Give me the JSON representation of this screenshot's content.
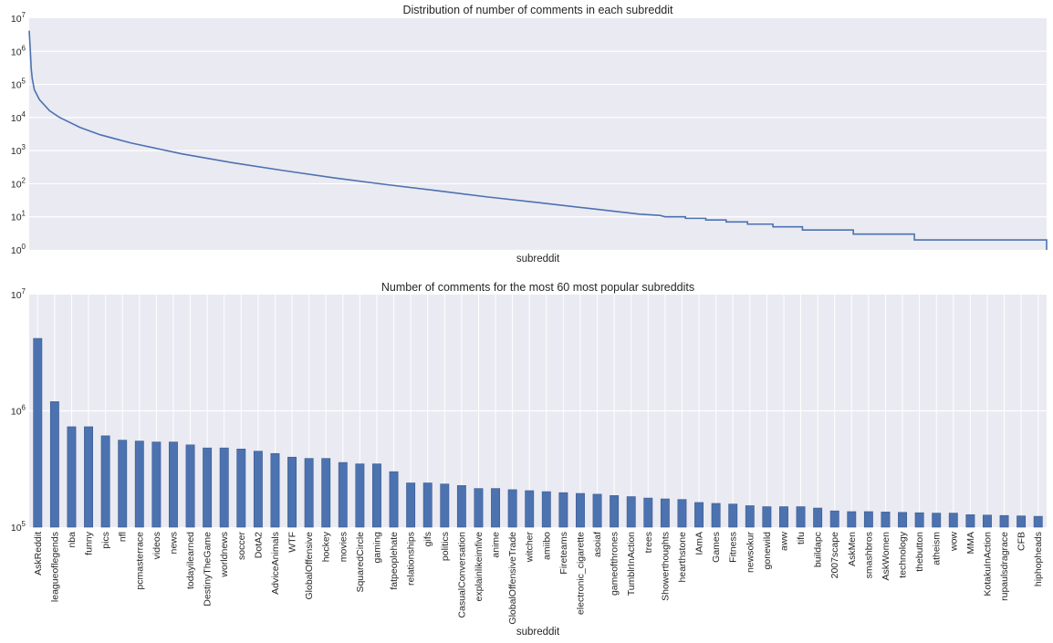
{
  "chart_data": [
    {
      "type": "line",
      "title": "Distribution of number of comments in each subreddit",
      "xlabel": "subreddit",
      "ylabel": "",
      "yscale": "log",
      "ylim": [
        1,
        10000000
      ],
      "yticks": [
        {
          "value": 1,
          "base": "10",
          "exp": "0"
        },
        {
          "value": 10,
          "base": "10",
          "exp": "1"
        },
        {
          "value": 100,
          "base": "10",
          "exp": "2"
        },
        {
          "value": 1000,
          "base": "10",
          "exp": "3"
        },
        {
          "value": 10000,
          "base": "10",
          "exp": "4"
        },
        {
          "value": 100000,
          "base": "10",
          "exp": "5"
        },
        {
          "value": 1000000,
          "base": "10",
          "exp": "6"
        },
        {
          "value": 10000000,
          "base": "10",
          "exp": "7"
        }
      ],
      "grid": true,
      "x_ticks_shown": false,
      "color": "#4c72b0",
      "x_domain": [
        0,
        1
      ],
      "points": [
        [
          0,
          4200000
        ],
        [
          0.001,
          1200000
        ],
        [
          0.002,
          300000
        ],
        [
          0.003,
          150000
        ],
        [
          0.005,
          70000
        ],
        [
          0.01,
          35000
        ],
        [
          0.02,
          16000
        ],
        [
          0.03,
          10000
        ],
        [
          0.05,
          5000
        ],
        [
          0.07,
          3000
        ],
        [
          0.1,
          1700
        ],
        [
          0.15,
          800
        ],
        [
          0.2,
          430
        ],
        [
          0.25,
          250
        ],
        [
          0.3,
          150
        ],
        [
          0.35,
          95
        ],
        [
          0.4,
          62
        ],
        [
          0.45,
          40
        ],
        [
          0.5,
          27
        ],
        [
          0.55,
          18
        ],
        [
          0.6,
          12
        ],
        [
          0.62,
          11
        ],
        [
          0.625,
          10
        ],
        [
          0.645,
          10
        ],
        [
          0.645,
          9
        ],
        [
          0.665,
          9
        ],
        [
          0.665,
          8
        ],
        [
          0.685,
          8
        ],
        [
          0.685,
          7
        ],
        [
          0.706,
          7
        ],
        [
          0.706,
          6
        ],
        [
          0.731,
          6
        ],
        [
          0.731,
          5
        ],
        [
          0.76,
          5
        ],
        [
          0.76,
          4
        ],
        [
          0.81,
          4
        ],
        [
          0.81,
          3
        ],
        [
          0.87,
          3
        ],
        [
          0.87,
          2
        ],
        [
          1.002,
          2
        ],
        [
          1.002,
          1
        ],
        [
          1.3,
          1
        ]
      ]
    },
    {
      "type": "bar",
      "title": "Number of comments for the most 60 most popular subreddits",
      "xlabel": "subreddit",
      "ylabel": "",
      "yscale": "log",
      "ylim": [
        100000,
        10000000
      ],
      "yticks": [
        {
          "value": 100000,
          "base": "10",
          "exp": "5"
        },
        {
          "value": 1000000,
          "base": "10",
          "exp": "6"
        },
        {
          "value": 10000000,
          "base": "10",
          "exp": "7"
        }
      ],
      "grid": true,
      "color": "#4c72b0",
      "categories": [
        "AskReddit",
        "leagueoflegends",
        "nba",
        "funny",
        "pics",
        "nfl",
        "pcmasterrace",
        "videos",
        "news",
        "todayilearned",
        "DestinyTheGame",
        "worldnews",
        "soccer",
        "DotA2",
        "AdviceAnimals",
        "WTF",
        "GlobalOffensive",
        "hockey",
        "movies",
        "SquaredCircle",
        "gaming",
        "fatpeoplehate",
        "relationships",
        "gifs",
        "politics",
        "CasualConversation",
        "explainlikeimfive",
        "anime",
        "GlobalOffensiveTrade",
        "witcher",
        "amiibo",
        "Fireteams",
        "electronic_cigarette",
        "asoiaf",
        "gameofthrones",
        "TumblrInAction",
        "trees",
        "Showerthoughts",
        "hearthstone",
        "IAmA",
        "Games",
        "Fitness",
        "newsokur",
        "gonewild",
        "aww",
        "tifu",
        "buildapc",
        "2007scape",
        "AskMen",
        "smashbros",
        "AskWomen",
        "technology",
        "thebutton",
        "atheism",
        "wow",
        "MMA",
        "KotakuInAction",
        "rupaulsdragrace",
        "CFB",
        "hiphopheads"
      ],
      "values": [
        4200000,
        1200000,
        730000,
        730000,
        610000,
        560000,
        550000,
        540000,
        540000,
        510000,
        480000,
        480000,
        470000,
        450000,
        430000,
        400000,
        390000,
        390000,
        360000,
        350000,
        350000,
        300000,
        240000,
        240000,
        235000,
        228000,
        215000,
        215000,
        210000,
        206000,
        202000,
        198000,
        195000,
        192000,
        187000,
        183000,
        178000,
        175000,
        173000,
        163000,
        160000,
        158000,
        153000,
        150000,
        150000,
        150000,
        146000,
        138000,
        136000,
        136000,
        135000,
        134000,
        133000,
        132000,
        132000,
        128000,
        127000,
        126000,
        125000,
        124000
      ]
    }
  ]
}
